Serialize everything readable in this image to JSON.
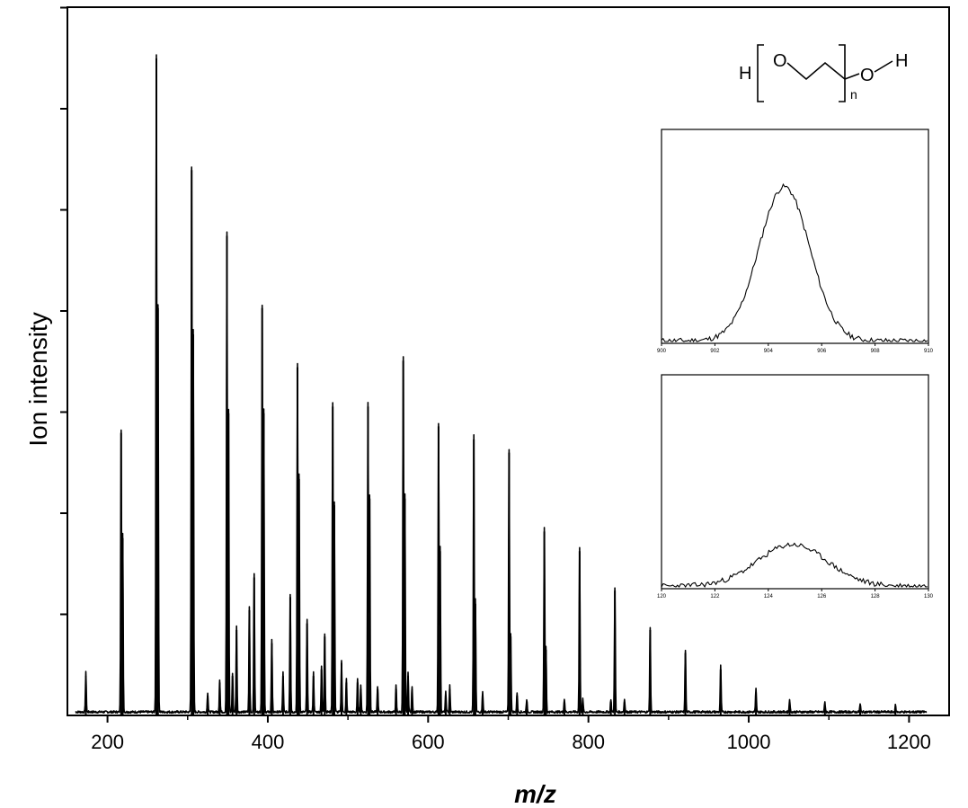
{
  "chart_data": {
    "type": "line",
    "xlabel": "m/z",
    "ylabel": "Ion intensity",
    "xlim": [
      150,
      1250
    ],
    "ylim": [
      0,
      100
    ],
    "x_ticks": [
      200,
      400,
      600,
      800,
      1000,
      1200
    ],
    "x_tick_labels": [
      "200",
      "400",
      "600",
      "800",
      "1000",
      "1200"
    ],
    "grid": false,
    "legend": "none",
    "series": [
      {
        "peaks_main": [
          [
            173,
            6
          ],
          [
            217,
            43
          ],
          [
            261,
            100
          ],
          [
            305,
            83
          ],
          [
            349,
            73
          ],
          [
            393,
            62
          ],
          [
            437,
            53
          ],
          [
            481,
            47
          ],
          [
            525,
            47
          ],
          [
            569,
            54
          ],
          [
            613,
            44
          ],
          [
            657,
            42
          ],
          [
            701,
            40
          ],
          [
            745,
            28
          ],
          [
            789,
            25
          ],
          [
            833,
            19
          ],
          [
            877,
            13
          ],
          [
            921,
            9.5
          ],
          [
            965,
            7
          ],
          [
            1009,
            3.5
          ]
        ],
        "peaks_secondary": [
          [
            219,
            27
          ],
          [
            263,
            62
          ],
          [
            307,
            58
          ],
          [
            351,
            46
          ],
          [
            395,
            46
          ],
          [
            439,
            36
          ],
          [
            483,
            32
          ],
          [
            527,
            33
          ],
          [
            571,
            33
          ],
          [
            615,
            25
          ],
          [
            659,
            17
          ],
          [
            703,
            12
          ],
          [
            747,
            10
          ]
        ],
        "peaks_minor": [
          [
            325,
            3
          ],
          [
            340,
            5
          ],
          [
            356,
            6
          ],
          [
            361,
            13
          ],
          [
            377,
            16
          ],
          [
            383,
            21
          ],
          [
            405,
            11
          ],
          [
            419,
            6
          ],
          [
            428,
            18
          ],
          [
            449,
            14
          ],
          [
            457,
            6
          ],
          [
            467,
            7
          ],
          [
            471,
            12
          ],
          [
            492,
            8
          ],
          [
            498,
            5
          ],
          [
            512,
            5
          ],
          [
            516,
            4
          ],
          [
            537,
            4
          ],
          [
            560,
            4
          ],
          [
            575,
            6
          ],
          [
            580,
            4
          ],
          [
            622,
            3
          ],
          [
            627,
            4
          ],
          [
            668,
            3
          ],
          [
            711,
            3
          ],
          [
            723,
            2
          ],
          [
            770,
            2
          ],
          [
            793,
            2
          ],
          [
            828,
            2
          ],
          [
            845,
            2
          ],
          [
            1051,
            2
          ],
          [
            1095,
            1.5
          ],
          [
            1139,
            1.2
          ],
          [
            1183,
            1
          ]
        ]
      }
    ],
    "insets": [
      {
        "type": "line",
        "x_tick_labels": [
          "900",
          "902",
          "904",
          "906",
          "908",
          "910"
        ],
        "xlim": [
          900,
          910
        ],
        "peak_center": 904.6,
        "peak_sigma": 0.95,
        "relative_height": 1.0
      },
      {
        "type": "line",
        "x_tick_labels": [
          "120",
          "122",
          "124",
          "126",
          "128",
          "130"
        ],
        "xlim": [
          120,
          130
        ],
        "peak_center": 124.9,
        "peak_sigma": 1.3,
        "relative_height": 0.27
      }
    ],
    "structure": {
      "left_atom": "H",
      "ring_atom": "O",
      "right_o": "O",
      "right_h": "H",
      "subscript": "n"
    }
  }
}
